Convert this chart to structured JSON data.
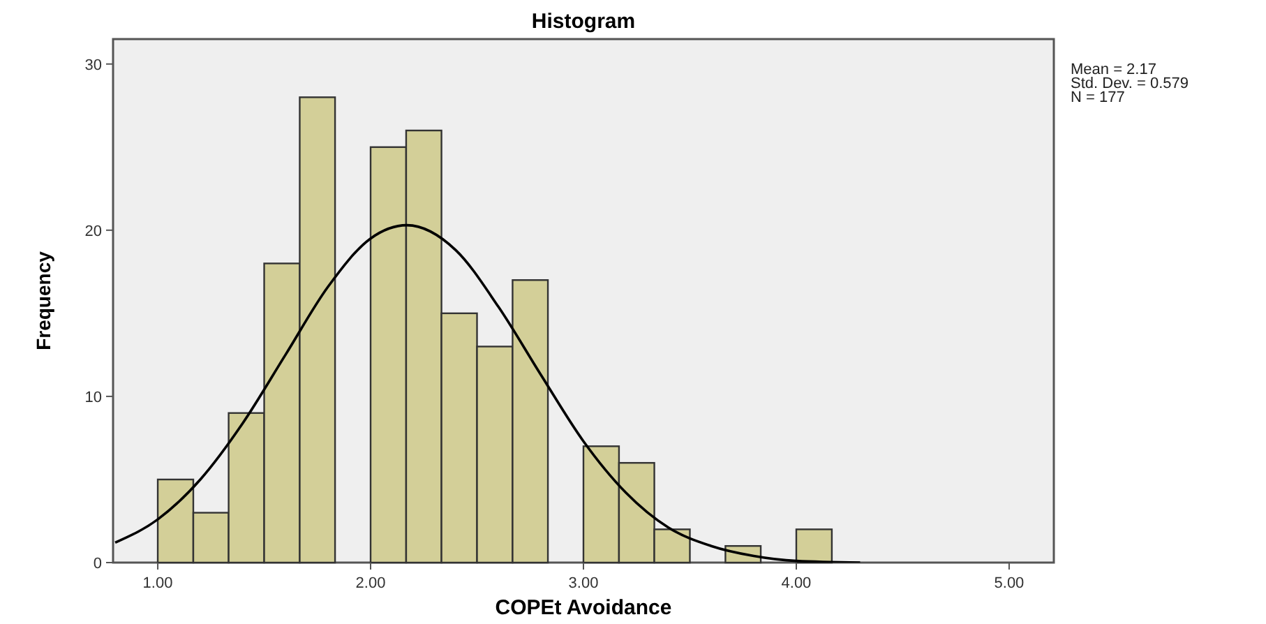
{
  "chart_data": {
    "type": "histogram",
    "title": "Histogram",
    "xlabel": "COPEt Avoidance",
    "ylabel": "Frequency",
    "bins": [
      1,
      1.167,
      1.333,
      1.5,
      1.667,
      1.833,
      2,
      2.167,
      2.333,
      2.5,
      2.667,
      2.833,
      3,
      3.167,
      3.333,
      3.5,
      3.667,
      3.833,
      4,
      4.167
    ],
    "values": [
      5,
      3,
      9,
      18,
      28,
      0,
      25,
      26,
      15,
      13,
      17,
      0,
      7,
      6,
      2,
      0,
      1,
      0,
      2
    ],
    "color": "#d3cf98",
    "series": [
      {
        "type": "line",
        "color": "#000000",
        "x": [
          0.8,
          1,
          1.2,
          1.4,
          1.6,
          1.8,
          2,
          2.17,
          2.4,
          2.6,
          2.8,
          3,
          3.2,
          3.4,
          3.6,
          3.8,
          4,
          4.3
        ],
        "values": [
          1.2,
          2.6,
          5,
          8.4,
          12.5,
          16.6,
          19.5,
          20.3,
          18.8,
          15.4,
          11.3,
          7.3,
          4.2,
          2.1,
          1,
          0.4,
          0.1,
          0
        ]
      }
    ],
    "xlim": [
      0.79,
      5.21
    ],
    "xticks": [
      {
        "value": 1,
        "label": "1.00"
      },
      {
        "value": 2,
        "label": "2.00"
      },
      {
        "value": 3,
        "label": "3.00"
      },
      {
        "value": 4,
        "label": "4.00"
      },
      {
        "value": 5,
        "label": "5.00"
      }
    ],
    "ylim": [
      0,
      31.5
    ],
    "yticks": [
      0,
      10,
      20,
      30
    ],
    "grid": false,
    "annotations": [
      "Mean = 2.17",
      "Std. Dev. = 0.579",
      "N = 177"
    ]
  }
}
